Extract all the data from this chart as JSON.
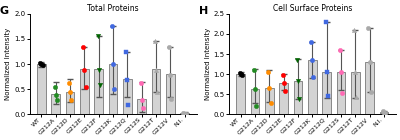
{
  "G": {
    "title": "Total Proteins",
    "xlabel": "",
    "ylabel": "Normalized Intensity",
    "ylim": [
      0,
      2.0
    ],
    "yticks": [
      0.0,
      0.5,
      1.0,
      1.5,
      2.0
    ],
    "categories": [
      "WT",
      "G212A",
      "G212D",
      "G212E",
      "G212F",
      "G212K",
      "G212Q",
      "G212S",
      "G212T",
      "G212V",
      "N.I."
    ],
    "bar_heights": [
      1.0,
      0.4,
      0.45,
      0.9,
      0.9,
      1.0,
      0.7,
      0.3,
      0.9,
      0.8,
      0.02
    ],
    "bar_color": "#d3d3d3",
    "bar_edge_color": "#888888",
    "error_bars_upper": [
      0.05,
      0.25,
      0.25,
      0.45,
      0.65,
      0.75,
      0.55,
      0.35,
      0.55,
      0.55,
      0.02
    ],
    "error_bars_lower": [
      0.05,
      0.2,
      0.2,
      0.4,
      0.55,
      0.6,
      0.35,
      0.25,
      0.45,
      0.45,
      0.01
    ],
    "dot_colors": [
      "#000000",
      "#228B22",
      "#FF8C00",
      "#FF0000",
      "#006400",
      "#1E90FF",
      "#1E90FF",
      "#FF69B4",
      "#C0C0C0",
      "#C0C0C0",
      "#C0C0C0"
    ],
    "dot_values": [
      [
        1.02,
        1.0,
        0.98
      ],
      [
        0.55,
        0.38,
        0.28
      ],
      [
        0.62,
        0.45,
        0.28
      ],
      [
        1.35,
        0.88,
        0.55
      ],
      [
        1.55,
        0.88,
        0.58
      ],
      [
        1.75,
        1.0,
        0.5
      ],
      [
        1.25,
        0.68,
        0.18
      ],
      [
        0.62,
        0.28,
        0.12
      ],
      [
        1.45,
        0.88,
        0.45
      ],
      [
        1.35,
        0.78,
        0.3
      ],
      [
        0.03,
        0.01,
        0.01
      ]
    ]
  },
  "H": {
    "title": "Cell Surface Proteins",
    "xlabel": "",
    "ylabel": "Normalized Intensity",
    "ylim": [
      0,
      2.5
    ],
    "yticks": [
      0.0,
      0.5,
      1.0,
      1.5,
      2.0,
      2.5
    ],
    "categories": [
      "WT",
      "G212A",
      "G212D",
      "G212E",
      "G212F",
      "G212K",
      "G212Q",
      "G212S",
      "G212T",
      "G212V",
      "N.I."
    ],
    "bar_heights": [
      1.0,
      0.62,
      0.65,
      0.78,
      0.82,
      1.35,
      1.05,
      1.05,
      1.05,
      1.3,
      0.05
    ],
    "bar_color": "#d3d3d3",
    "bar_edge_color": "#888888",
    "error_bars_upper": [
      0.05,
      0.5,
      0.45,
      0.22,
      0.55,
      0.45,
      1.25,
      0.55,
      1.05,
      0.85,
      0.04
    ],
    "error_bars_lower": [
      0.05,
      0.35,
      0.35,
      0.18,
      0.45,
      0.45,
      0.65,
      0.45,
      0.65,
      0.75,
      0.03
    ],
    "dot_colors": [
      "#000000",
      "#228B22",
      "#FF8C00",
      "#FF0000",
      "#006400",
      "#1E90FF",
      "#1E90FF",
      "#FF69B4",
      "#C0C0C0",
      "#C0C0C0",
      "#C0C0C0"
    ],
    "dot_values": [
      [
        1.02,
        1.0,
        0.98
      ],
      [
        1.1,
        0.62,
        0.2
      ],
      [
        1.05,
        0.65,
        0.28
      ],
      [
        0.98,
        0.78,
        0.58
      ],
      [
        1.35,
        0.82,
        0.38
      ],
      [
        1.8,
        1.35,
        0.92
      ],
      [
        2.3,
        1.05,
        0.45
      ],
      [
        1.6,
        1.05,
        0.52
      ],
      [
        2.1,
        1.05,
        0.42
      ],
      [
        2.15,
        1.3,
        0.55
      ],
      [
        0.08,
        0.04,
        0.02
      ]
    ]
  },
  "panel_label_G": "G",
  "panel_label_H": "H",
  "bar_width": 0.6,
  "figsize": [
    4.0,
    1.4
  ],
  "dpi": 100
}
